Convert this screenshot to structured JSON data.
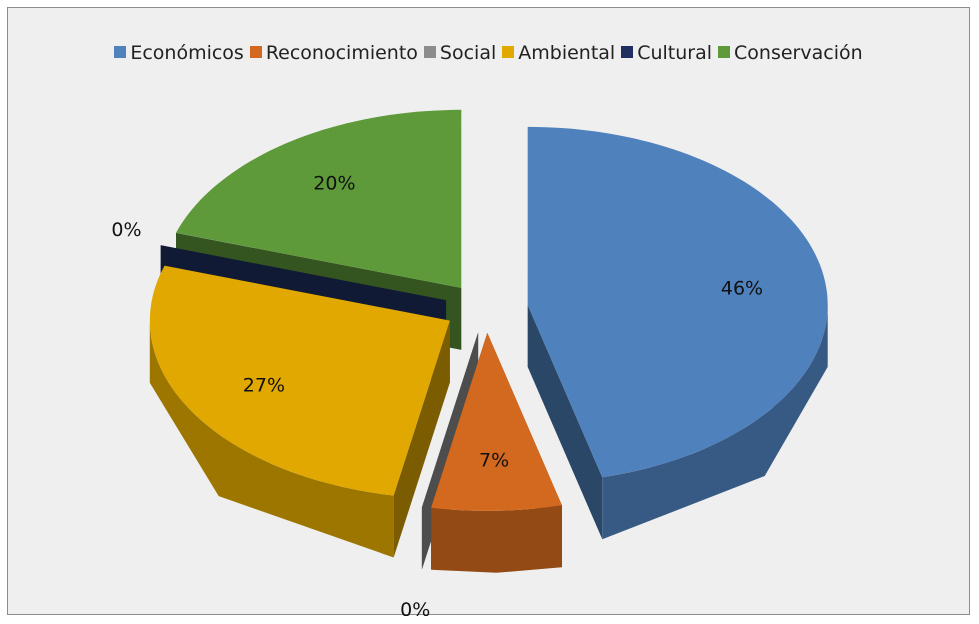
{
  "chart_data": {
    "type": "pie",
    "categories": [
      "Económicos",
      "Reconocimiento",
      "Social",
      "Ambiental",
      "Cultural",
      "Conservación"
    ],
    "values": [
      46,
      7,
      0,
      27,
      0,
      20
    ],
    "value_labels": [
      "46%",
      "7%",
      "0%",
      "27%",
      "0%",
      "20%"
    ],
    "colors": [
      "#4f81bd",
      "#d2691e",
      "#8c8c8c",
      "#e0a800",
      "#1f3060",
      "#5f9a3a"
    ],
    "legend": "top",
    "three_d": true,
    "exploded": true
  }
}
